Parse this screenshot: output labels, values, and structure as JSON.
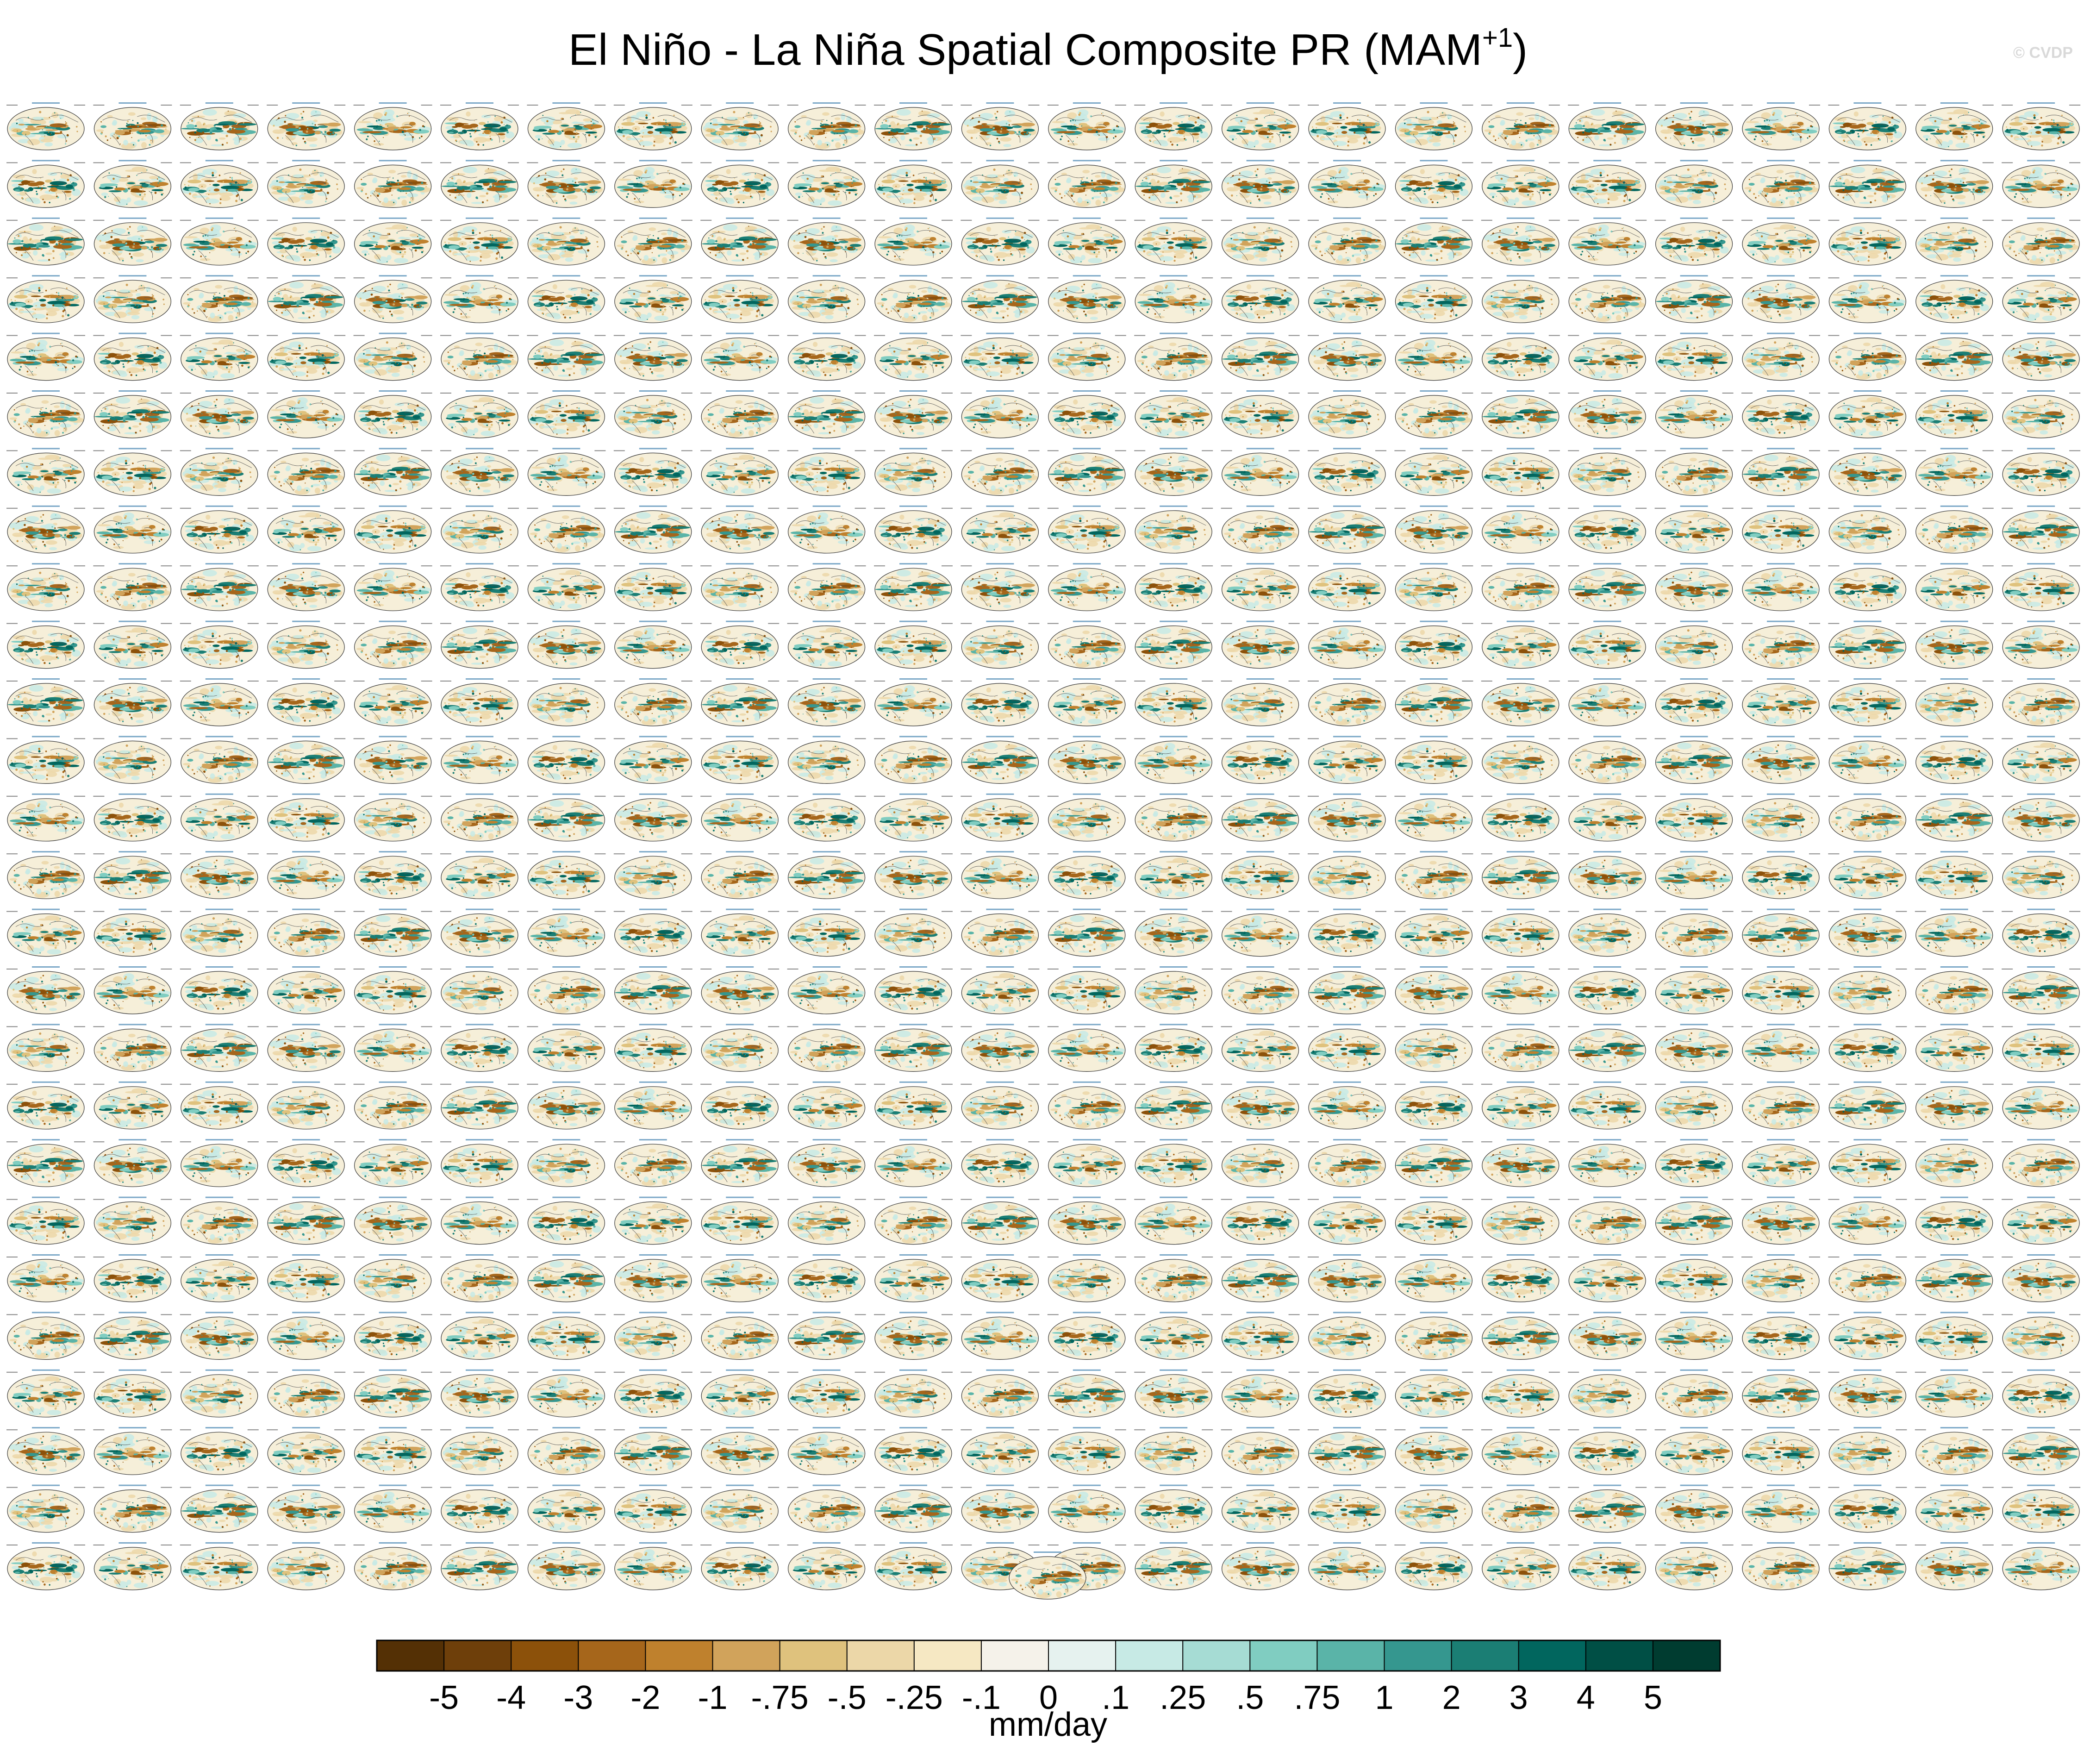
{
  "title_main": "El Niño - La Niña Spatial Composite PR (MAM",
  "title_sup": "+1",
  "title_end": ")",
  "watermark": "© CVDP",
  "chart_data": {
    "type": "heatmap",
    "title": "El Niño - La Niña Spatial Composite PR (MAM+1)",
    "panel_grid": {
      "rows": 26,
      "columns": 24,
      "extra_panels_last_row": 1
    },
    "colorbar": {
      "units": "mm/day",
      "tick_labels": [
        "-5",
        "-4",
        "-3",
        "-2",
        "-1",
        "-.75",
        "-.5",
        "-.25",
        "-.1",
        "0",
        ".1",
        ".25",
        ".5",
        ".75",
        "1",
        "2",
        "3",
        "4",
        "5"
      ],
      "colors": [
        "#543005",
        "#6e3f0a",
        "#8c510a",
        "#a6661b",
        "#bf812d",
        "#d1a35b",
        "#dfc27d",
        "#ecd7a8",
        "#f6e8c3",
        "#f5f2ea",
        "#e6f2ef",
        "#c7eae5",
        "#a6dcd4",
        "#80cdc1",
        "#5ab4a8",
        "#35978f",
        "#1b7e74",
        "#01665e",
        "#004f45",
        "#003c30"
      ]
    }
  }
}
